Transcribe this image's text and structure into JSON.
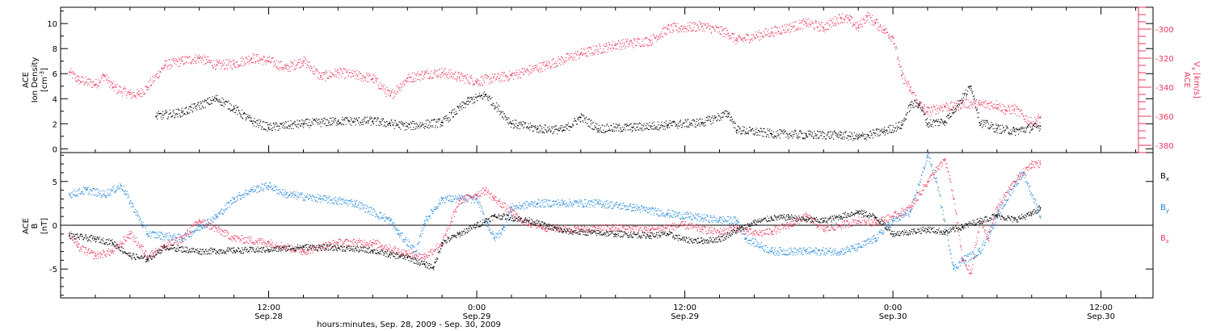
{
  "chart_data": [
    {
      "type": "scatter",
      "panel": "top",
      "ylabel_left": {
        "lines": [
          "ACE",
          "Ion Density"
        ],
        "unit_prefix": "[cm",
        "unit_exp": "-3",
        "unit_suffix": "]"
      },
      "ylabel_right": {
        "lines": [
          "ACE"
        ],
        "main": "V",
        "sub": "x",
        "unit": "[km/s]"
      },
      "ylim_left": [
        -0.3,
        11.3
      ],
      "yticks_left": [
        "0",
        "2",
        "4",
        "6",
        "8",
        "10"
      ],
      "ylim_right": [
        -385,
        -285
      ],
      "yticks_right": [
        "-380",
        "-360",
        "-340",
        "-320",
        "-300"
      ],
      "grid": false,
      "colors": {
        "density": "#000000",
        "vx": "#e8385e"
      },
      "series": [
        {
          "key": "density",
          "axis": "left",
          "x": [
            "09-28 05:30",
            "09-28 07:00",
            "09-28 09:00",
            "09-28 10:00",
            "09-28 11:00",
            "09-28 12:00",
            "09-28 14:00",
            "09-28 16:00",
            "09-28 18:00",
            "09-28 19:00",
            "09-28 20:00",
            "09-28 22:00",
            "09-28 23:30",
            "09-29 00:30",
            "09-29 02:00",
            "09-29 03:30",
            "09-29 05:00",
            "09-29 06:00",
            "09-29 07:00",
            "09-29 09:00",
            "09-29 11:00",
            "09-29 13:00",
            "09-29 14:30",
            "09-29 15:00",
            "09-29 17:00",
            "09-29 19:00",
            "09-29 21:00",
            "09-29 22:00",
            "09-29 23:30",
            "09-30 00:30",
            "09-30 01:00",
            "09-30 01:30",
            "09-30 02:00",
            "09-30 03:00",
            "09-30 04:30",
            "09-30 05:00",
            "09-30 06:00",
            "09-30 07:00",
            "09-30 08:30"
          ],
          "y": [
            2.6,
            2.9,
            4.0,
            3.2,
            2.2,
            1.7,
            2.0,
            2.2,
            2.2,
            2.0,
            1.8,
            2.1,
            3.8,
            4.3,
            2.0,
            1.6,
            1.5,
            2.5,
            1.6,
            1.7,
            1.9,
            2.1,
            2.8,
            1.5,
            1.2,
            1.1,
            1.1,
            0.9,
            1.4,
            1.9,
            3.5,
            3.6,
            2.0,
            2.2,
            5.0,
            2.1,
            1.6,
            1.4,
            1.8
          ]
        },
        {
          "key": "vx",
          "axis": "right",
          "x": [
            "09-28 00:30",
            "09-28 01:00",
            "09-28 02:00",
            "09-28 02:30",
            "09-28 03:00",
            "09-28 04:00",
            "09-28 04:30",
            "09-28 05:00",
            "09-28 06:00",
            "09-28 07:00",
            "09-28 08:00",
            "09-28 09:00",
            "09-28 10:00",
            "09-28 11:00",
            "09-28 12:00",
            "09-28 13:00",
            "09-28 14:00",
            "09-28 15:00",
            "09-28 16:00",
            "09-28 18:00",
            "09-28 19:00",
            "09-28 20:00",
            "09-28 21:00",
            "09-28 22:00",
            "09-28 23:00",
            "09-29 00:00",
            "09-29 02:00",
            "09-29 04:00",
            "09-29 06:00",
            "09-29 08:00",
            "09-29 10:00",
            "09-29 11:00",
            "09-29 13:00",
            "09-29 14:30",
            "09-29 15:00",
            "09-29 17:00",
            "09-29 19:00",
            "09-29 20:00",
            "09-29 21:00",
            "09-29 21:30",
            "09-29 22:00",
            "09-29 22:30",
            "09-29 23:00",
            "09-29 23:30",
            "09-30 00:00",
            "09-30 00:30",
            "09-30 01:00",
            "09-30 01:30",
            "09-30 02:00",
            "09-30 03:00",
            "09-30 03:30",
            "09-30 04:00",
            "09-30 05:00",
            "09-30 06:00",
            "09-30 06:30",
            "09-30 07:00",
            "09-30 08:00",
            "09-30 08:30"
          ],
          "y": [
            -330,
            -335,
            -338,
            -332,
            -340,
            -345,
            -345,
            -340,
            -325,
            -322,
            -320,
            -325,
            -324,
            -320,
            -322,
            -327,
            -322,
            -333,
            -330,
            -334,
            -346,
            -334,
            -331,
            -330,
            -333,
            -336,
            -332,
            -325,
            -317,
            -311,
            -308,
            -300,
            -298,
            -303,
            -308,
            -302,
            -296,
            -299,
            -292,
            -294,
            -299,
            -291,
            -296,
            -301,
            -306,
            -332,
            -342,
            -352,
            -357,
            -353,
            -354,
            -351,
            -352,
            -352,
            -356,
            -355,
            -365,
            -361
          ]
        }
      ]
    },
    {
      "type": "scatter",
      "panel": "bottom",
      "ylabel": {
        "lines": [
          "ACE",
          "B"
        ],
        "unit": "[nT]"
      },
      "ylim": [
        -8.3,
        8.3
      ],
      "yticks": [
        "-5",
        "0",
        "5"
      ],
      "zero_line": true,
      "grid": false,
      "colors": {
        "bx": "#000000",
        "by": "#1f86d9",
        "bz": "#e8385e"
      },
      "legend": [
        {
          "key": "bx",
          "main": "B",
          "sub": "x"
        },
        {
          "key": "by",
          "main": "B",
          "sub": "y"
        },
        {
          "key": "bz",
          "main": "B",
          "sub": "z"
        }
      ],
      "legend_placement": "right, outside plot",
      "series": [
        {
          "key": "bx",
          "x": [
            "09-28 00:30",
            "09-28 02:00",
            "09-28 03:00",
            "09-28 04:00",
            "09-28 05:00",
            "09-28 06:00",
            "09-28 08:00",
            "09-28 10:00",
            "09-28 12:00",
            "09-28 14:00",
            "09-28 16:00",
            "09-28 18:00",
            "09-28 19:00",
            "09-28 20:00",
            "09-28 21:00",
            "09-28 21:30",
            "09-28 22:00",
            "09-28 23:00",
            "09-29 00:00",
            "09-29 01:00",
            "09-29 01:30",
            "09-29 03:00",
            "09-29 05:00",
            "09-29 08:00",
            "09-29 10:00",
            "09-29 11:00",
            "09-29 12:00",
            "09-29 13:00",
            "09-29 14:00",
            "09-29 15:00",
            "09-29 16:00",
            "09-29 17:00",
            "09-29 18:00",
            "09-29 19:00",
            "09-29 20:00",
            "09-29 21:00",
            "09-29 22:00",
            "09-29 23:00",
            "09-30 00:00",
            "09-30 02:00",
            "09-30 03:00",
            "09-30 04:00",
            "09-30 05:00",
            "09-30 06:00",
            "09-30 07:00",
            "09-30 08:00",
            "09-30 08:30"
          ],
          "y": [
            -1.2,
            -1.6,
            -2.0,
            -3.5,
            -3.9,
            -2.5,
            -3.0,
            -2.9,
            -2.8,
            -2.5,
            -2.6,
            -2.9,
            -3.4,
            -3.7,
            -4.5,
            -4.8,
            -2.0,
            -1.0,
            0.0,
            1.0,
            1.0,
            0.5,
            -0.7,
            -1.0,
            -1.2,
            -1.0,
            -1.7,
            -1.8,
            -1.6,
            -0.6,
            0.3,
            0.8,
            0.9,
            0.6,
            0.5,
            1.0,
            1.5,
            0.9,
            -1.0,
            -0.5,
            -0.8,
            -0.2,
            0.5,
            1.1,
            0.6,
            1.3,
            2.0
          ]
        },
        {
          "key": "by",
          "x": [
            "09-28 00:30",
            "09-28 01:30",
            "09-28 02:30",
            "09-28 03:30",
            "09-28 05:00",
            "09-28 07:00",
            "09-28 09:00",
            "09-28 10:00",
            "09-28 11:00",
            "09-28 12:00",
            "09-28 13:00",
            "09-28 15:00",
            "09-28 17:00",
            "09-28 19:00",
            "09-28 19:30",
            "09-28 20:30",
            "09-28 21:00",
            "09-28 22:00",
            "09-29 00:00",
            "09-29 00:30",
            "09-29 01:00",
            "09-29 01:30",
            "09-29 02:00",
            "09-29 03:30",
            "09-29 05:00",
            "09-29 07:00",
            "09-29 09:00",
            "09-29 11:00",
            "09-29 13:00",
            "09-29 14:00",
            "09-29 15:00",
            "09-29 15:30",
            "09-29 17:00",
            "09-29 19:00",
            "09-29 21:00",
            "09-29 22:00",
            "09-29 23:00",
            "09-30 00:00",
            "09-30 01:00",
            "09-30 02:00",
            "09-30 02:30",
            "09-30 03:30",
            "09-30 04:00",
            "09-30 05:00",
            "09-30 06:00",
            "09-30 07:00",
            "09-30 07:30",
            "09-30 08:30"
          ],
          "y": [
            3.5,
            4.0,
            3.5,
            4.5,
            -1.0,
            -1.5,
            1.0,
            3.0,
            4.0,
            4.5,
            3.5,
            3.0,
            2.5,
            0.5,
            -1.0,
            -3.0,
            0.5,
            3.0,
            3.0,
            0.5,
            -1.5,
            -0.5,
            2.0,
            2.5,
            2.5,
            2.5,
            2.0,
            1.3,
            0.8,
            0.6,
            0.5,
            -1.5,
            -3.0,
            -3.0,
            -3.0,
            -2.5,
            -1.5,
            0.5,
            1.5,
            8.0,
            5.0,
            -5.0,
            -4.0,
            -3.0,
            1.0,
            4.5,
            6.0,
            1.0
          ]
        },
        {
          "key": "bz",
          "x": [
            "09-28 00:30",
            "09-28 01:00",
            "09-28 02:00",
            "09-28 03:00",
            "09-28 04:00",
            "09-28 05:00",
            "09-28 07:00",
            "09-28 08:00",
            "09-28 10:00",
            "09-28 12:00",
            "09-28 14:00",
            "09-28 16:00",
            "09-28 18:00",
            "09-28 20:00",
            "09-28 21:00",
            "09-28 22:00",
            "09-28 23:00",
            "09-29 00:00",
            "09-29 00:30",
            "09-29 01:00",
            "09-29 02:00",
            "09-29 02:30",
            "09-29 04:00",
            "09-29 06:00",
            "09-29 08:00",
            "09-29 10:00",
            "09-29 12:00",
            "09-29 13:00",
            "09-29 14:00",
            "09-29 15:00",
            "09-29 16:00",
            "09-29 17:00",
            "09-29 18:00",
            "09-29 19:00",
            "09-29 20:00",
            "09-29 21:00",
            "09-29 22:00",
            "09-29 23:00",
            "09-30 00:00",
            "09-30 01:00",
            "09-30 02:00",
            "09-30 03:00",
            "09-30 03:30",
            "09-30 04:00",
            "09-30 04:30",
            "09-30 05:00",
            "09-30 05:30",
            "09-30 06:00",
            "09-30 07:00",
            "09-30 08:00",
            "09-30 08:30"
          ],
          "y": [
            -1.0,
            -2.5,
            -3.5,
            -3.0,
            -1.0,
            -3.5,
            -1.5,
            0.5,
            -1.5,
            -2.0,
            -3.0,
            -2.0,
            -2.0,
            -3.3,
            -3.6,
            -2.0,
            2.8,
            3.5,
            4.0,
            3.0,
            1.5,
            0.5,
            -0.3,
            -0.5,
            -0.3,
            -0.5,
            0.0,
            -0.5,
            -0.8,
            -0.3,
            -1.0,
            -0.7,
            0.0,
            1.0,
            -0.5,
            0.0,
            0.5,
            0.3,
            1.0,
            2.0,
            5.0,
            7.5,
            3.0,
            -4.0,
            -5.5,
            0.5,
            -1.5,
            2.0,
            5.0,
            7.0,
            7.0
          ]
        }
      ]
    }
  ],
  "xaxis": {
    "ticks": [
      {
        "time": "09-28 12:00",
        "label": "12:00",
        "date": "Sep.28"
      },
      {
        "time": "09-29 00:00",
        "label": "0:00",
        "date": "Sep.29"
      },
      {
        "time": "09-29 12:00",
        "label": "12:00",
        "date": "Sep.29"
      },
      {
        "time": "09-30 00:00",
        "label": "0:00",
        "date": "Sep.30"
      },
      {
        "time": "09-30 12:00",
        "label": "12:00",
        "date": "Sep.30"
      }
    ],
    "title": "hours:minutes, Sep. 28, 2009 - Sep. 30, 2009",
    "range": [
      "09-28 00:00",
      "09-30 15:00"
    ]
  }
}
